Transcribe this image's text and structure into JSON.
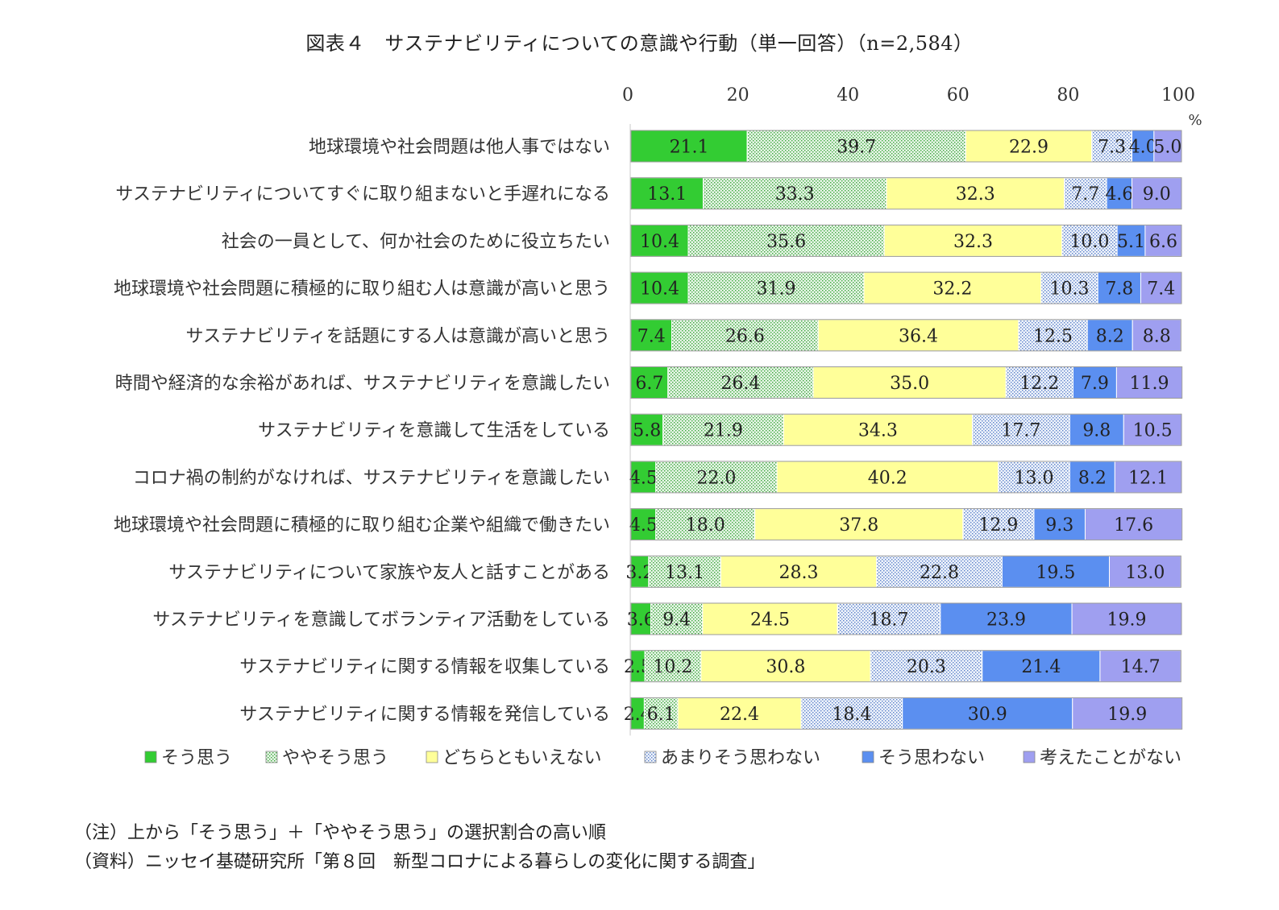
{
  "title": "図表４　サステナビリティについての意識や行動（単一回答）（n=2,584）",
  "notes": {
    "note": "（注）上から「そう思う」＋「ややそう思う」の選択割合の高い順",
    "source": "（資料）ニッセイ基礎研究所「第８回　新型コロナによる暮らしの変化に関する調査」"
  },
  "chart_data": {
    "type": "bar",
    "orientation": "horizontal",
    "stacked": true,
    "xlim": [
      0,
      100
    ],
    "xticks": [
      "0",
      "20",
      "40",
      "60",
      "80",
      "100"
    ],
    "xunit": "%",
    "grid": false,
    "legend_position": "bottom",
    "categories": [
      "地球環境や社会問題は他人事ではない",
      "サステナビリティについてすぐに取り組まないと手遅れになる",
      "社会の一員として、何か社会のために役立ちたい",
      "地球環境や社会問題に積極的に取り組む人は意識が高いと思う",
      "サステナビリティを話題にする人は意識が高いと思う",
      "時間や経済的な余裕があれば、サステナビリティを意識したい",
      "サステナビリティを意識して生活をしている",
      "コロナ禍の制約がなければ、サステナビリティを意識したい",
      "地球環境や社会問題に積極的に取り組む企業や組織で働きたい",
      "サステナビリティについて家族や友人と話すことがある",
      "サステナビリティを意識してボランティア活動をしている",
      "サステナビリティに関する情報を収集している",
      "サステナビリティに関する情報を発信している"
    ],
    "series": [
      {
        "name": "そう思う",
        "color": "#33cc33",
        "pattern": "solid",
        "values": [
          21.1,
          13.1,
          10.4,
          10.4,
          7.4,
          6.7,
          5.8,
          4.5,
          4.5,
          3.2,
          3.6,
          2.5,
          2.4
        ]
      },
      {
        "name": "ややそう思う",
        "color": "#ddf0dd",
        "pattern": "dots-green",
        "values": [
          39.7,
          33.3,
          35.6,
          31.9,
          26.6,
          26.4,
          21.9,
          22.0,
          18.0,
          13.1,
          9.4,
          10.2,
          6.1
        ]
      },
      {
        "name": "どちらともいえない",
        "color": "#ffff99",
        "pattern": "solid",
        "values": [
          22.9,
          32.3,
          32.3,
          32.2,
          36.4,
          35.0,
          34.3,
          40.2,
          37.8,
          28.3,
          24.5,
          30.8,
          22.4
        ]
      },
      {
        "name": "あまりそう思わない",
        "color": "#e4ecf8",
        "pattern": "dots-blue",
        "values": [
          7.3,
          7.7,
          10.0,
          10.3,
          12.5,
          12.2,
          17.7,
          13.0,
          12.9,
          22.8,
          18.7,
          20.3,
          18.4
        ]
      },
      {
        "name": "そう思わない",
        "color": "#5b8ff0",
        "pattern": "solid",
        "values": [
          4.0,
          4.6,
          5.1,
          7.8,
          8.2,
          7.9,
          9.8,
          8.2,
          9.3,
          19.5,
          23.9,
          21.4,
          30.9
        ]
      },
      {
        "name": "考えたことがない",
        "color": "#9f9ff0",
        "pattern": "solid",
        "values": [
          5.0,
          9.0,
          6.6,
          7.4,
          8.8,
          11.9,
          10.5,
          12.1,
          17.6,
          13.0,
          19.9,
          14.7,
          19.9
        ]
      }
    ]
  }
}
